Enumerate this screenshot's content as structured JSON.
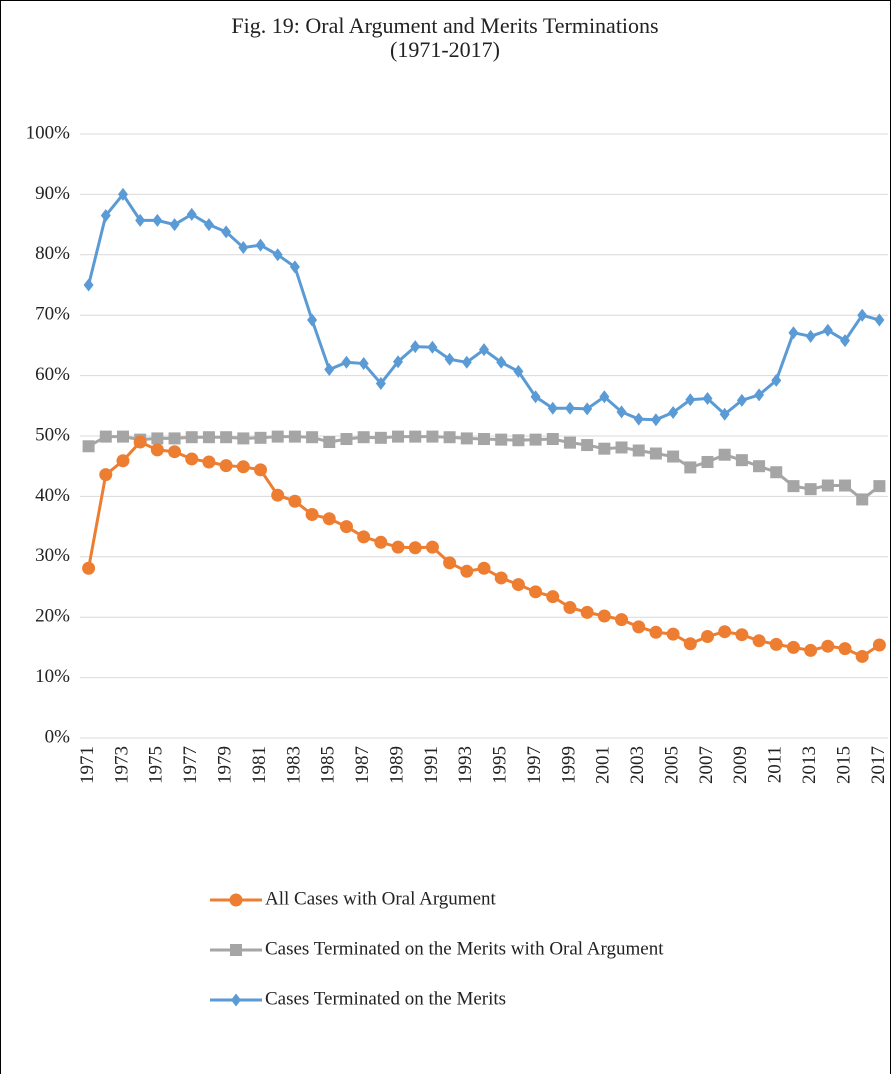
{
  "chart_data": {
    "type": "line",
    "title": [
      "Fig. 19: Oral Argument and Merits Terminations",
      "(1971-2017)"
    ],
    "categories": [
      "1971",
      null,
      "1973",
      null,
      "1975",
      null,
      "1977",
      null,
      "1979",
      null,
      "1981",
      null,
      "1983",
      null,
      "1985",
      null,
      "1987",
      null,
      "1989",
      null,
      "1991",
      null,
      "1993",
      null,
      "1995",
      null,
      "1997",
      null,
      "1999",
      null,
      "2001",
      null,
      "2003",
      null,
      "2005",
      null,
      "2007",
      null,
      "2009",
      null,
      "2011",
      null,
      "2013",
      null,
      "2015",
      null,
      "2017"
    ],
    "series": [
      {
        "name": "All Cases with Oral Argument",
        "color": "#ed7d31",
        "marker": "circle",
        "values": [
          28.1,
          43.6,
          45.9,
          49.0,
          47.7,
          47.4,
          46.2,
          45.7,
          45.1,
          44.9,
          44.4,
          40.2,
          39.2,
          37.0,
          36.3,
          35.0,
          33.3,
          32.4,
          31.6,
          31.5,
          31.6,
          29.0,
          27.6,
          28.1,
          26.5,
          25.4,
          24.2,
          23.4,
          21.6,
          20.8,
          20.2,
          19.6,
          18.4,
          17.5,
          17.2,
          15.6,
          16.8,
          17.6,
          17.1,
          16.1,
          15.5,
          15.0,
          14.5,
          15.2,
          14.8,
          13.5,
          15.4
        ]
      },
      {
        "name": "Cases Terminated on the Merits with Oral Argument",
        "color": "#a5a5a5",
        "marker": "square",
        "values": [
          48.3,
          49.9,
          49.9,
          49.4,
          49.6,
          49.6,
          49.8,
          49.8,
          49.8,
          49.6,
          49.7,
          49.9,
          49.9,
          49.8,
          49.0,
          49.5,
          49.8,
          49.7,
          49.9,
          49.9,
          49.9,
          49.8,
          49.6,
          49.5,
          49.4,
          49.3,
          49.4,
          49.5,
          48.9,
          48.5,
          47.9,
          48.1,
          47.6,
          47.1,
          46.6,
          44.8,
          45.7,
          46.9,
          46.0,
          45.0,
          44.0,
          41.7,
          41.2,
          41.8,
          41.8,
          39.5,
          41.7
        ]
      },
      {
        "name": "Cases Terminated on the Merits",
        "color": "#5b9bd5",
        "marker": "diamond",
        "values": [
          75.0,
          86.5,
          90.0,
          85.7,
          85.7,
          85.0,
          86.7,
          85.0,
          83.8,
          81.2,
          81.6,
          80.0,
          78.0,
          69.2,
          61.0,
          62.2,
          62.0,
          58.7,
          62.3,
          64.8,
          64.7,
          62.7,
          62.2,
          64.3,
          62.2,
          60.7,
          56.5,
          54.6,
          54.6,
          54.5,
          56.5,
          54.0,
          52.8,
          52.7,
          53.9,
          56.0,
          56.2,
          53.6,
          55.9,
          56.8,
          59.2,
          67.1,
          66.5,
          67.5,
          65.8,
          70.0,
          69.2
        ]
      }
    ],
    "ylim": [
      0,
      100
    ],
    "yticks": [
      {
        "value": 0,
        "label": "0%"
      },
      {
        "value": 10,
        "label": "10%"
      },
      {
        "value": 20,
        "label": "20%"
      },
      {
        "value": 30,
        "label": "30%"
      },
      {
        "value": 40,
        "label": "40%"
      },
      {
        "value": 50,
        "label": "50%"
      },
      {
        "value": 60,
        "label": "60%"
      },
      {
        "value": 70,
        "label": "70%"
      },
      {
        "value": 80,
        "label": "80%"
      },
      {
        "value": 90,
        "label": "90%"
      },
      {
        "value": 100,
        "label": "100%"
      }
    ],
    "grid": true,
    "legend": "bottom"
  }
}
